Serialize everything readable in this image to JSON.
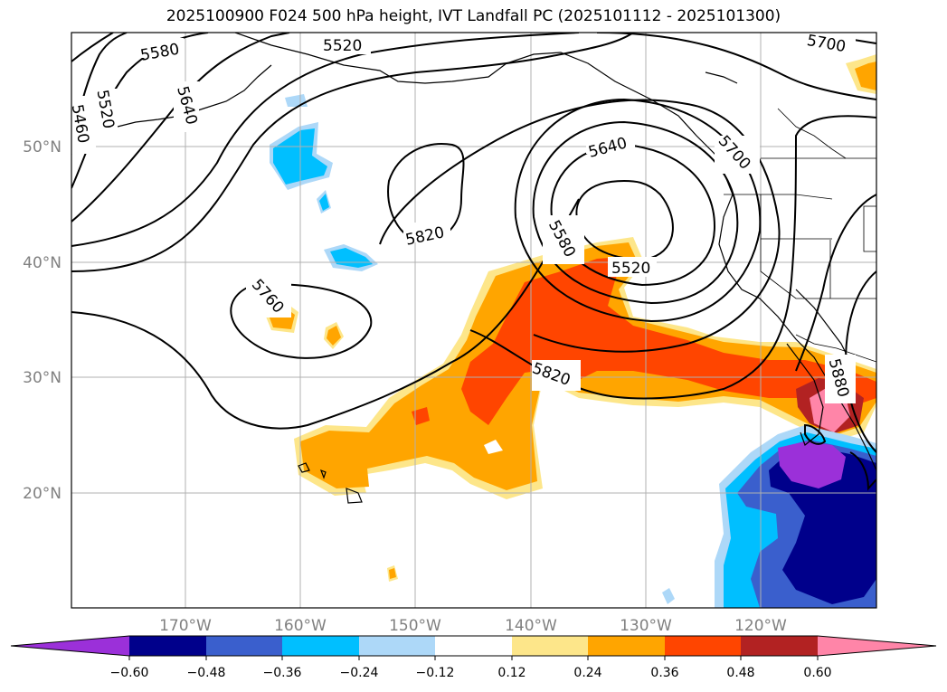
{
  "title": "2025100900 F024 500 hPa height, IVT Landfall PC (2025101112 - 2025101300)",
  "map": {
    "lat_labels": [
      "50°N",
      "40°N",
      "30°N",
      "20°N"
    ],
    "lon_labels": [
      "170°W",
      "160°W",
      "150°W",
      "140°W",
      "130°W",
      "120°W"
    ],
    "contour_labels": [
      "5580",
      "5520",
      "5460",
      "5520",
      "5640",
      "5820",
      "5760",
      "5640",
      "5700",
      "5580",
      "5520",
      "5820",
      "5700",
      "5880"
    ],
    "colors": {
      "neg_060": "#9b30d9",
      "neg_048": "#00008b",
      "neg_036": "#3a5fcd",
      "neg_024": "#00bfff",
      "neg_012": "#add8f8",
      "pos_012": "#fde68a",
      "pos_024": "#ffa500",
      "pos_036": "#ff4500",
      "pos_048": "#b22222",
      "pos_060": "#ff85a8"
    }
  },
  "colorbar": {
    "ticks": [
      "−0.60",
      "−0.48",
      "−0.36",
      "−0.24",
      "−0.12",
      "0.12",
      "0.24",
      "0.36",
      "0.48",
      "0.60"
    ],
    "colors": [
      "#9b30d9",
      "#00008b",
      "#3a5fcd",
      "#00bfff",
      "#add8f8",
      "#ffffff",
      "#fde68a",
      "#ffa500",
      "#ff4500",
      "#b22222",
      "#ff85a8"
    ]
  }
}
